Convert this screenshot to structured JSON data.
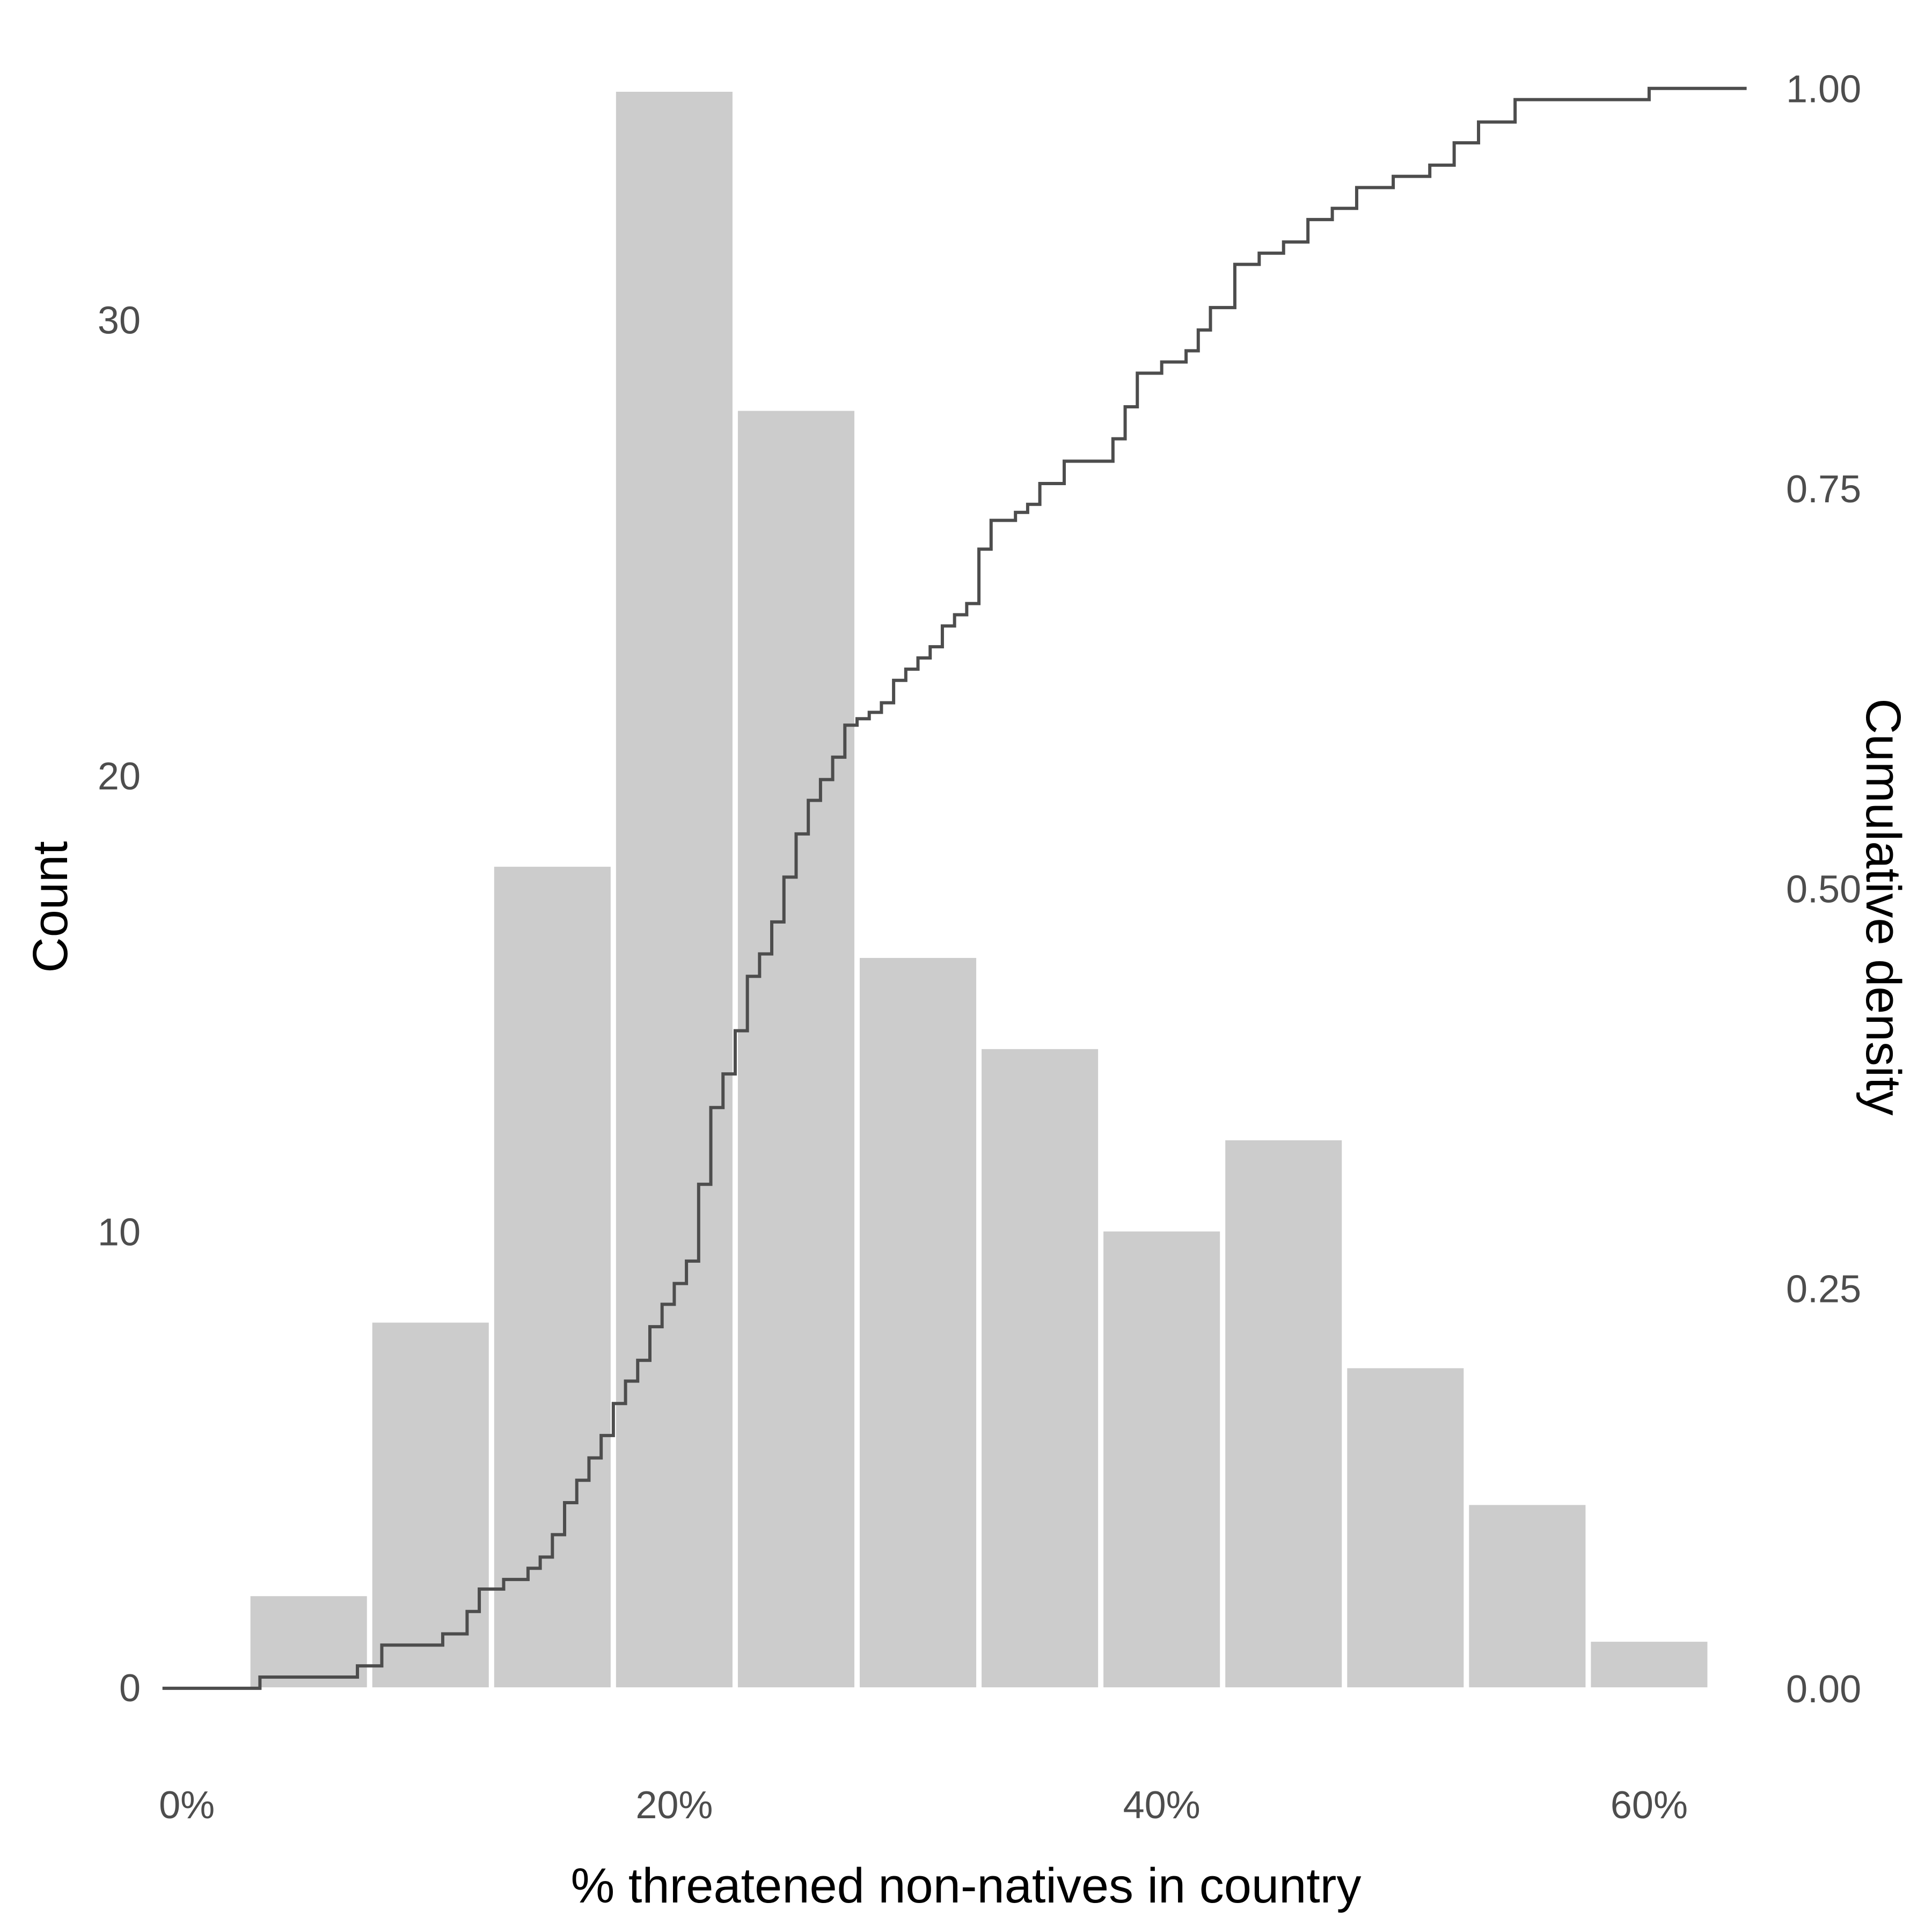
{
  "chart_data": {
    "type": "bar",
    "title": "",
    "xlabel": "% threatened non-natives in country",
    "ylabel": "Count",
    "y2label": "Cumulative density",
    "xlim": [
      -0.015,
      0.65
    ],
    "ylim": [
      -1.6,
      35.6
    ],
    "y2lim": [
      -0.045,
      1.015
    ],
    "grid": false,
    "legend": "none",
    "x_ticks": [
      0,
      0.2,
      0.4,
      0.6
    ],
    "x_tick_labels": [
      "0%",
      "20%",
      "40%",
      "60%"
    ],
    "y_ticks": [
      0,
      10,
      20,
      30
    ],
    "y_tick_labels": [
      "0",
      "10",
      "20",
      "30"
    ],
    "y2_ticks": [
      0,
      0.25,
      0.5,
      0.75,
      1.0
    ],
    "y2_tick_labels": [
      "0.00",
      "0.25",
      "0.50",
      "0.75",
      "1.00"
    ],
    "bar_color": "#cccccc",
    "line_color": "#4d4d4d",
    "bins": [
      {
        "start": 0.025,
        "end": 0.075,
        "count": 2
      },
      {
        "start": 0.075,
        "end": 0.125,
        "count": 8
      },
      {
        "start": 0.125,
        "end": 0.175,
        "count": 18
      },
      {
        "start": 0.175,
        "end": 0.225,
        "count": 35
      },
      {
        "start": 0.225,
        "end": 0.275,
        "count": 28
      },
      {
        "start": 0.275,
        "end": 0.325,
        "count": 16
      },
      {
        "start": 0.325,
        "end": 0.375,
        "count": 14
      },
      {
        "start": 0.375,
        "end": 0.425,
        "count": 10
      },
      {
        "start": 0.425,
        "end": 0.475,
        "count": 12
      },
      {
        "start": 0.475,
        "end": 0.525,
        "count": 7
      },
      {
        "start": 0.525,
        "end": 0.575,
        "count": 4
      },
      {
        "start": 0.575,
        "end": 0.625,
        "count": 1
      }
    ],
    "ecdf": {
      "x": [
        -0.01,
        0.03,
        0.07,
        0.08,
        0.105,
        0.115,
        0.12,
        0.13,
        0.14,
        0.145,
        0.15,
        0.155,
        0.16,
        0.165,
        0.17,
        0.175,
        0.18,
        0.185,
        0.19,
        0.195,
        0.2,
        0.205,
        0.21,
        0.215,
        0.22,
        0.225,
        0.23,
        0.235,
        0.24,
        0.245,
        0.25,
        0.255,
        0.26,
        0.265,
        0.27,
        0.275,
        0.28,
        0.285,
        0.29,
        0.295,
        0.3,
        0.305,
        0.31,
        0.315,
        0.32,
        0.325,
        0.33,
        0.34,
        0.345,
        0.35,
        0.36,
        0.38,
        0.385,
        0.39,
        0.4,
        0.41,
        0.415,
        0.42,
        0.43,
        0.44,
        0.45,
        0.46,
        0.47,
        0.48,
        0.495,
        0.51,
        0.52,
        0.53,
        0.545,
        0.555,
        0.6,
        0.64
      ],
      "y": [
        0.0,
        0.007,
        0.014,
        0.027,
        0.034,
        0.048,
        0.062,
        0.068,
        0.075,
        0.082,
        0.096,
        0.116,
        0.13,
        0.144,
        0.158,
        0.178,
        0.192,
        0.205,
        0.226,
        0.24,
        0.253,
        0.267,
        0.315,
        0.363,
        0.384,
        0.411,
        0.445,
        0.459,
        0.479,
        0.507,
        0.534,
        0.555,
        0.568,
        0.582,
        0.602,
        0.606,
        0.61,
        0.616,
        0.63,
        0.637,
        0.644,
        0.651,
        0.664,
        0.671,
        0.678,
        0.712,
        0.73,
        0.735,
        0.74,
        0.753,
        0.767,
        0.781,
        0.801,
        0.822,
        0.829,
        0.836,
        0.849,
        0.863,
        0.89,
        0.897,
        0.904,
        0.918,
        0.925,
        0.938,
        0.945,
        0.952,
        0.966,
        0.979,
        0.993,
        0.993,
        1.0,
        1.0
      ]
    }
  }
}
